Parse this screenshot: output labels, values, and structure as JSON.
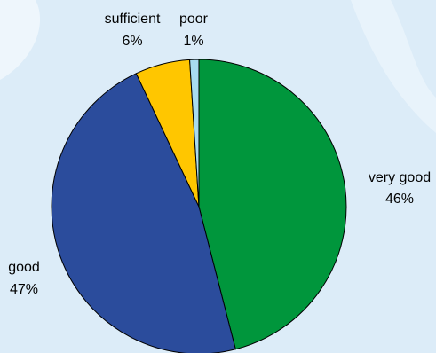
{
  "chart_data": {
    "type": "pie",
    "slices": [
      {
        "label": "very good",
        "value": 46,
        "value_text": "46%",
        "color": "#00963c"
      },
      {
        "label": "good",
        "value": 47,
        "value_text": "47%",
        "color": "#2b4c9c"
      },
      {
        "label": "sufficient",
        "value": 6,
        "value_text": "6%",
        "color": "#ffc600"
      },
      {
        "label": "poor",
        "value": 1,
        "value_text": "1%",
        "color": "#a8dcf0"
      }
    ],
    "slice_outline_color": "#000000",
    "background_color": "#dcecf8"
  }
}
